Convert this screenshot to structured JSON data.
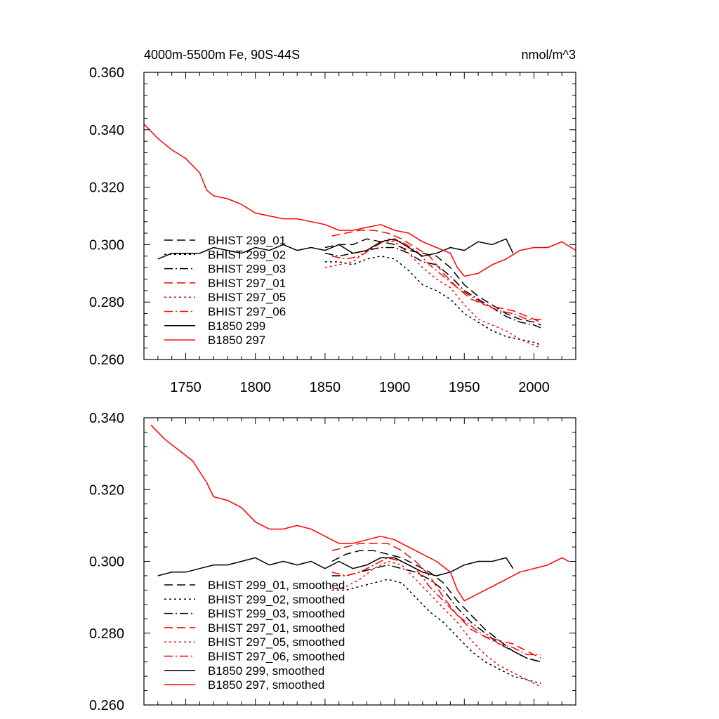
{
  "chart_data": [
    {
      "type": "line",
      "title_left": "4000m-5500m Fe, 90S-44S",
      "title_right": "nmol/m^3",
      "xlim": [
        1720,
        2030
      ],
      "ylim": [
        0.26,
        0.36
      ],
      "xticks": [
        1750,
        1800,
        1850,
        1900,
        1950,
        2000
      ],
      "xtick_labels": [
        "1750",
        "1800",
        "1850",
        "1900",
        "1950",
        "2000"
      ],
      "yticks": [
        0.26,
        0.28,
        0.3,
        0.32,
        0.34,
        0.36
      ],
      "ytick_labels": [
        "0.260",
        "0.280",
        "0.300",
        "0.320",
        "0.340",
        "0.360"
      ],
      "series": [
        {
          "name": "BHIST 299_01",
          "color": "#000000",
          "dash": "dash",
          "x": [
            1850,
            1860,
            1870,
            1880,
            1890,
            1900,
            1910,
            1920,
            1930,
            1940,
            1950,
            1960,
            1970,
            1980,
            1990,
            2000,
            2005
          ],
          "y": [
            0.299,
            0.3,
            0.3,
            0.302,
            0.301,
            0.3,
            0.298,
            0.297,
            0.296,
            0.292,
            0.286,
            0.282,
            0.279,
            0.276,
            0.274,
            0.273,
            0.272
          ]
        },
        {
          "name": "BHIST 299_02",
          "color": "#000000",
          "dash": "dot",
          "x": [
            1850,
            1860,
            1870,
            1880,
            1890,
            1900,
            1910,
            1920,
            1930,
            1940,
            1950,
            1960,
            1970,
            1980,
            1990,
            2000,
            2005
          ],
          "y": [
            0.294,
            0.294,
            0.293,
            0.295,
            0.296,
            0.295,
            0.291,
            0.286,
            0.284,
            0.281,
            0.276,
            0.273,
            0.27,
            0.268,
            0.267,
            0.266,
            0.265
          ]
        },
        {
          "name": "BHIST 299_03",
          "color": "#000000",
          "dash": "dashdot",
          "x": [
            1850,
            1860,
            1870,
            1880,
            1890,
            1900,
            1910,
            1920,
            1930,
            1940,
            1950,
            1960,
            1970,
            1980,
            1990,
            2000,
            2005
          ],
          "y": [
            0.297,
            0.296,
            0.297,
            0.298,
            0.299,
            0.299,
            0.297,
            0.294,
            0.293,
            0.289,
            0.284,
            0.281,
            0.278,
            0.275,
            0.273,
            0.272,
            0.271
          ]
        },
        {
          "name": "BHIST 297_01",
          "color": "#ff0000",
          "dash": "dash",
          "x": [
            1855,
            1865,
            1875,
            1885,
            1895,
            1905,
            1915,
            1925,
            1935,
            1945,
            1955,
            1965,
            1975,
            1985,
            1995,
            2005
          ],
          "y": [
            0.303,
            0.304,
            0.305,
            0.305,
            0.304,
            0.302,
            0.299,
            0.296,
            0.29,
            0.285,
            0.281,
            0.279,
            0.278,
            0.277,
            0.275,
            0.273
          ]
        },
        {
          "name": "BHIST 297_05",
          "color": "#ff0000",
          "dash": "dot",
          "x": [
            1850,
            1860,
            1870,
            1880,
            1890,
            1900,
            1910,
            1920,
            1930,
            1940,
            1950,
            1960,
            1970,
            1980,
            1990,
            2000,
            2005
          ],
          "y": [
            0.292,
            0.293,
            0.294,
            0.298,
            0.301,
            0.301,
            0.297,
            0.292,
            0.288,
            0.285,
            0.279,
            0.274,
            0.272,
            0.27,
            0.267,
            0.265,
            0.264
          ]
        },
        {
          "name": "BHIST 297_06",
          "color": "#ff0000",
          "dash": "dashdot",
          "x": [
            1855,
            1865,
            1875,
            1885,
            1895,
            1905,
            1915,
            1925,
            1935,
            1945,
            1955,
            1965,
            1975,
            1985,
            1995,
            2005
          ],
          "y": [
            0.296,
            0.295,
            0.296,
            0.299,
            0.302,
            0.301,
            0.298,
            0.293,
            0.289,
            0.285,
            0.282,
            0.279,
            0.277,
            0.276,
            0.274,
            0.274
          ]
        },
        {
          "name": "B1850 299",
          "color": "#000000",
          "dash": "solid",
          "x": [
            1730,
            1740,
            1750,
            1760,
            1770,
            1780,
            1790,
            1800,
            1810,
            1820,
            1830,
            1840,
            1850,
            1860,
            1870,
            1880,
            1890,
            1900,
            1910,
            1920,
            1930,
            1940,
            1950,
            1960,
            1970,
            1980,
            1985
          ],
          "y": [
            0.295,
            0.297,
            0.297,
            0.297,
            0.299,
            0.298,
            0.297,
            0.299,
            0.298,
            0.3,
            0.298,
            0.299,
            0.298,
            0.3,
            0.297,
            0.298,
            0.301,
            0.302,
            0.299,
            0.296,
            0.297,
            0.299,
            0.298,
            0.301,
            0.3,
            0.302,
            0.297
          ]
        },
        {
          "name": "B1850 297",
          "color": "#ff0000",
          "dash": "solid",
          "x": [
            1720,
            1730,
            1740,
            1750,
            1760,
            1765,
            1770,
            1780,
            1790,
            1800,
            1810,
            1820,
            1830,
            1840,
            1850,
            1860,
            1870,
            1880,
            1890,
            1900,
            1910,
            1920,
            1930,
            1940,
            1945,
            1950,
            1960,
            1970,
            1980,
            1990,
            2000,
            2010,
            2020,
            2030
          ],
          "y": [
            0.342,
            0.337,
            0.333,
            0.33,
            0.325,
            0.319,
            0.317,
            0.316,
            0.314,
            0.311,
            0.31,
            0.309,
            0.309,
            0.308,
            0.307,
            0.305,
            0.305,
            0.306,
            0.307,
            0.305,
            0.304,
            0.301,
            0.299,
            0.297,
            0.292,
            0.289,
            0.29,
            0.293,
            0.295,
            0.298,
            0.299,
            0.299,
            0.301,
            0.298
          ]
        }
      ]
    },
    {
      "type": "line",
      "xlim": [
        1720,
        2030
      ],
      "ylim": [
        0.26,
        0.34
      ],
      "xticks": [
        1750,
        1800,
        1850,
        1900,
        1950,
        2000
      ],
      "yticks": [
        0.26,
        0.28,
        0.3,
        0.32,
        0.34
      ],
      "ytick_labels": [
        "0.260",
        "0.280",
        "0.300",
        "0.320",
        "0.340"
      ],
      "series": [
        {
          "name": "BHIST 299_01, smoothed",
          "color": "#000000",
          "dash": "dash",
          "x": [
            1855,
            1865,
            1875,
            1885,
            1895,
            1905,
            1915,
            1925,
            1935,
            1945,
            1955,
            1965,
            1975,
            1985,
            1995,
            2005
          ],
          "y": [
            0.3,
            0.302,
            0.303,
            0.303,
            0.302,
            0.301,
            0.299,
            0.297,
            0.294,
            0.289,
            0.285,
            0.281,
            0.278,
            0.275,
            0.273,
            0.272
          ]
        },
        {
          "name": "BHIST 299_02, smoothed",
          "color": "#000000",
          "dash": "dot",
          "x": [
            1855,
            1865,
            1875,
            1885,
            1895,
            1905,
            1915,
            1925,
            1935,
            1945,
            1955,
            1965,
            1975,
            1985,
            1995,
            2005
          ],
          "y": [
            0.292,
            0.292,
            0.293,
            0.294,
            0.295,
            0.294,
            0.29,
            0.286,
            0.283,
            0.279,
            0.275,
            0.272,
            0.27,
            0.268,
            0.267,
            0.266
          ]
        },
        {
          "name": "BHIST 299_03, smoothed",
          "color": "#000000",
          "dash": "dashdot",
          "x": [
            1855,
            1865,
            1875,
            1885,
            1895,
            1905,
            1915,
            1925,
            1935,
            1945,
            1955,
            1965,
            1975,
            1985,
            1995,
            2005
          ],
          "y": [
            0.296,
            0.296,
            0.297,
            0.298,
            0.299,
            0.298,
            0.297,
            0.295,
            0.292,
            0.287,
            0.283,
            0.28,
            0.277,
            0.275,
            0.273,
            0.272
          ]
        },
        {
          "name": "BHIST 297_01, smoothed",
          "color": "#ff0000",
          "dash": "dash",
          "x": [
            1855,
            1865,
            1875,
            1885,
            1895,
            1905,
            1915,
            1925,
            1935,
            1945,
            1955,
            1965,
            1975,
            1985,
            1995,
            2005
          ],
          "y": [
            0.303,
            0.304,
            0.305,
            0.305,
            0.305,
            0.303,
            0.3,
            0.296,
            0.29,
            0.285,
            0.281,
            0.279,
            0.278,
            0.277,
            0.275,
            0.273
          ]
        },
        {
          "name": "BHIST 297_05, smoothed",
          "color": "#ff0000",
          "dash": "dot",
          "x": [
            1855,
            1865,
            1875,
            1885,
            1895,
            1905,
            1915,
            1925,
            1935,
            1945,
            1955,
            1965,
            1975,
            1985,
            1995,
            2005
          ],
          "y": [
            0.292,
            0.293,
            0.295,
            0.298,
            0.3,
            0.299,
            0.295,
            0.291,
            0.287,
            0.283,
            0.278,
            0.274,
            0.271,
            0.269,
            0.267,
            0.265
          ]
        },
        {
          "name": "BHIST 297_06, smoothed",
          "color": "#ff0000",
          "dash": "dashdot",
          "x": [
            1855,
            1865,
            1875,
            1885,
            1895,
            1905,
            1915,
            1925,
            1935,
            1945,
            1955,
            1965,
            1975,
            1985,
            1995,
            2005
          ],
          "y": [
            0.297,
            0.296,
            0.297,
            0.299,
            0.301,
            0.3,
            0.298,
            0.293,
            0.289,
            0.285,
            0.282,
            0.279,
            0.277,
            0.276,
            0.274,
            0.274
          ]
        },
        {
          "name": "B1850 299, smoothed",
          "color": "#000000",
          "dash": "solid",
          "x": [
            1730,
            1740,
            1750,
            1760,
            1770,
            1780,
            1790,
            1800,
            1810,
            1820,
            1830,
            1840,
            1850,
            1860,
            1870,
            1880,
            1890,
            1900,
            1910,
            1920,
            1930,
            1940,
            1950,
            1960,
            1970,
            1980,
            1985
          ],
          "y": [
            0.296,
            0.297,
            0.297,
            0.298,
            0.299,
            0.299,
            0.3,
            0.301,
            0.299,
            0.3,
            0.299,
            0.3,
            0.298,
            0.3,
            0.298,
            0.299,
            0.301,
            0.301,
            0.299,
            0.297,
            0.296,
            0.297,
            0.299,
            0.3,
            0.3,
            0.301,
            0.298
          ]
        },
        {
          "name": "B1850 297, smoothed",
          "color": "#ff0000",
          "dash": "solid",
          "x": [
            1725,
            1735,
            1745,
            1755,
            1765,
            1770,
            1780,
            1790,
            1800,
            1810,
            1820,
            1830,
            1840,
            1850,
            1860,
            1870,
            1880,
            1890,
            1900,
            1910,
            1920,
            1930,
            1940,
            1945,
            1950,
            1960,
            1970,
            1980,
            1990,
            2000,
            2010,
            2020,
            2025
          ],
          "y": [
            0.338,
            0.334,
            0.331,
            0.328,
            0.322,
            0.318,
            0.317,
            0.315,
            0.311,
            0.309,
            0.309,
            0.31,
            0.309,
            0.307,
            0.305,
            0.305,
            0.306,
            0.307,
            0.306,
            0.304,
            0.302,
            0.3,
            0.297,
            0.292,
            0.289,
            0.291,
            0.293,
            0.295,
            0.297,
            0.298,
            0.299,
            0.301,
            0.3
          ]
        }
      ]
    }
  ]
}
